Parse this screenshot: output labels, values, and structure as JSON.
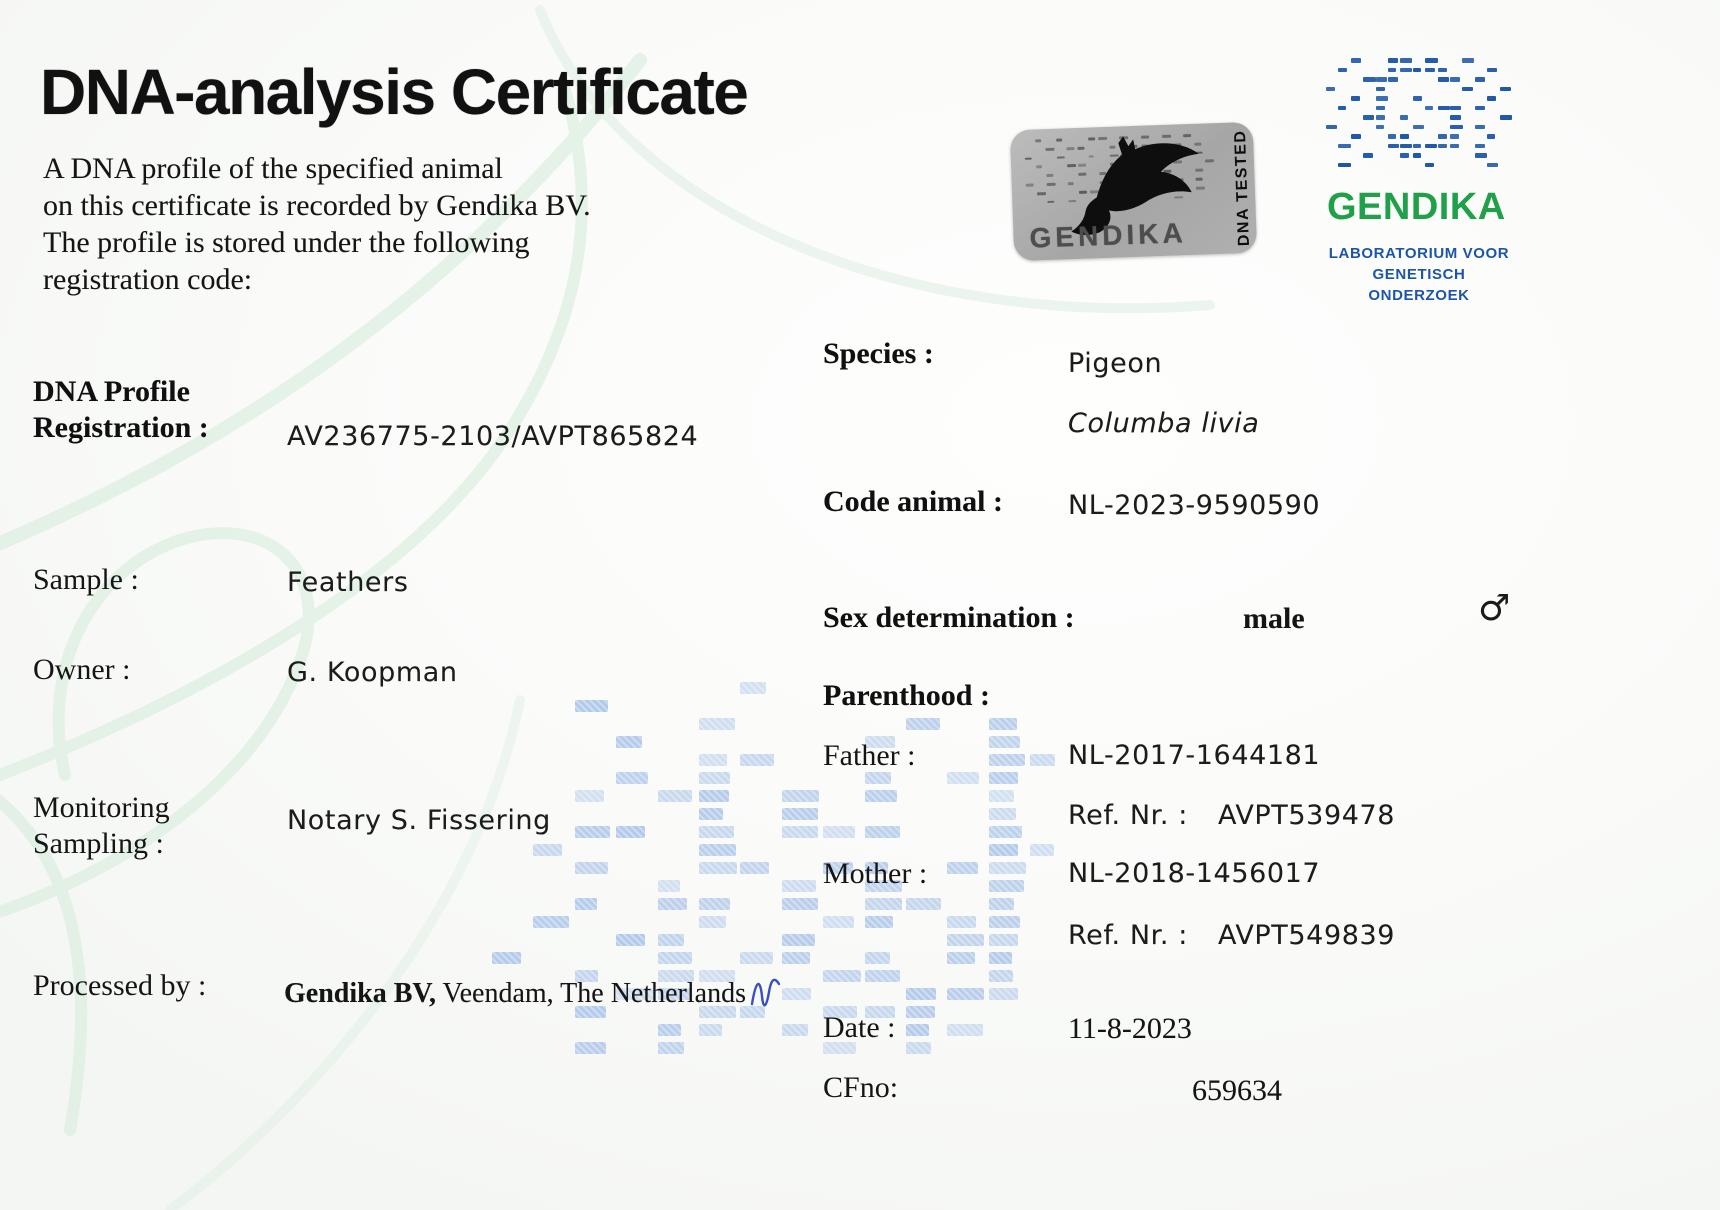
{
  "title": "DNA-analysis Certificate",
  "intro": [
    "A DNA profile of the specified animal",
    "on this certificate is recorded by Gendika BV.",
    "The profile is stored under the following",
    "registration code:"
  ],
  "left_fields": {
    "registration": {
      "label_line1": "DNA Profile",
      "label_line2": "Registration :",
      "value": "AV236775-2103/AVPT865824"
    },
    "sample": {
      "label": "Sample :",
      "value": "Feathers"
    },
    "owner": {
      "label": "Owner :",
      "value": "G. Koopman"
    },
    "monitoring": {
      "label_line1": "Monitoring",
      "label_line2": "Sampling :",
      "value": "Notary S. Fissering"
    },
    "processed_by": {
      "label": "Processed by :",
      "value_bold": "Gendika BV,",
      "value_rest": " Veendam, The Netherlands"
    }
  },
  "right_fields": {
    "species": {
      "label": "Species :",
      "value": "Pigeon",
      "latin": "Columba livia"
    },
    "code_animal": {
      "label": "Code animal :",
      "value": "NL-2023-9590590"
    },
    "sex": {
      "label": "Sex determination :",
      "value": "male",
      "symbol": "♂"
    },
    "parenthood_label": "Parenthood :",
    "father": {
      "label": "Father :",
      "value": "NL-2017-1644181",
      "ref_label": "Ref. Nr.  :",
      "ref_value": "AVPT539478"
    },
    "mother": {
      "label": "Mother :",
      "value": "NL-2018-1456017",
      "ref_label": "Ref. Nr.  :",
      "ref_value": "AVPT549839"
    },
    "date": {
      "label": "Date :",
      "value": "11-8-2023"
    },
    "cfno": {
      "label": "CFno:",
      "value": "659634"
    }
  },
  "sticker": {
    "brand": "GENDIKA",
    "side_text": "DNA TESTED"
  },
  "logo": {
    "brand": "GENDIKA",
    "subtitle_line1": "LABORATORIUM VOOR",
    "subtitle_line2": "GENETISCH ONDERZOEK",
    "brand_color": "#21a04a",
    "pattern_color": "#1d56a8"
  },
  "colors": {
    "watermark_blue": "#b7cde9",
    "helix_green": "#d9ecdd",
    "signature_blue": "#3a4fc0",
    "sticker_silver": "#ababab"
  }
}
